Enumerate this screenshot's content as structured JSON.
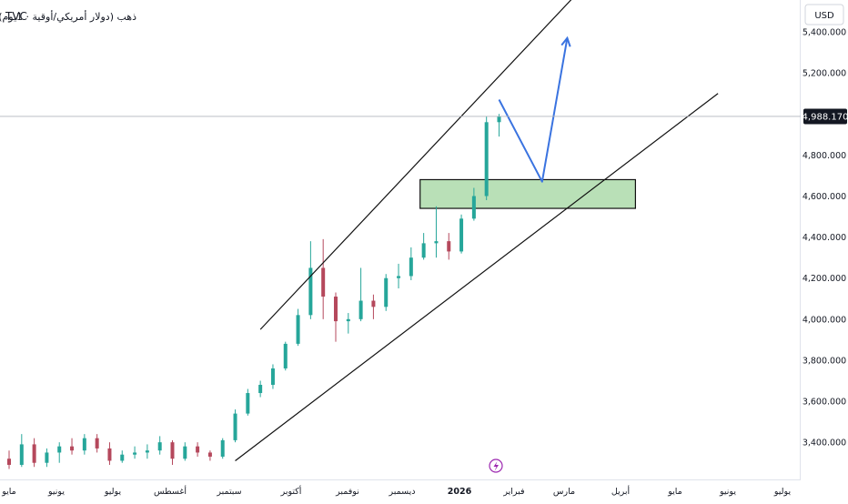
{
  "header": {
    "symbol_title": "(ذهب (دولار أمريكي/أوقية · 1يوم",
    "exchange": "TVC"
  },
  "price_axis": {
    "currency": "USD",
    "ticks": [
      "5,400.000",
      "5,200.000",
      "4,800.000",
      "4,600.000",
      "4,400.000",
      "4,200.000",
      "4,000.000",
      "3,800.000",
      "3,600.000",
      "3,400.000"
    ],
    "last_price_label": "4,988.170"
  },
  "time_axis": {
    "labels": [
      "مايو",
      "يونيو",
      "يوليو",
      "أغسطس",
      "سبتمبر",
      "أكتوبر",
      "نوفمبر",
      "ديسمبر",
      "2026",
      "فبراير",
      "مارس",
      "أبريل",
      "مايو",
      "يونيو",
      "يوليو"
    ]
  },
  "event_marker_icon": "lightning-icon",
  "colors": {
    "up_candle": "#26a69a",
    "down_candle": "#b5485c",
    "projection_arrow": "#3a73e0",
    "support_zone": "#b9e0b7",
    "channel_lines": "#111111"
  },
  "chart_data": {
    "type": "candlestick",
    "title": "",
    "ylabel": "USD",
    "ylim": [
      3250,
      5520
    ],
    "last_price": 4988.17,
    "x_range": [
      "2025-04-28",
      "2026-07-08"
    ],
    "series_ohlc": [
      {
        "date": "2025-04-28",
        "o": 3320,
        "h": 3360,
        "l": 3270,
        "c": 3290
      },
      {
        "date": "2025-05-05",
        "o": 3290,
        "h": 3440,
        "l": 3280,
        "c": 3390
      },
      {
        "date": "2025-05-12",
        "o": 3390,
        "h": 3420,
        "l": 3280,
        "c": 3300
      },
      {
        "date": "2025-05-19",
        "o": 3300,
        "h": 3370,
        "l": 3280,
        "c": 3350
      },
      {
        "date": "2025-05-26",
        "o": 3350,
        "h": 3400,
        "l": 3300,
        "c": 3380
      },
      {
        "date": "2025-06-02",
        "o": 3380,
        "h": 3420,
        "l": 3340,
        "c": 3360
      },
      {
        "date": "2025-06-09",
        "o": 3360,
        "h": 3440,
        "l": 3340,
        "c": 3420
      },
      {
        "date": "2025-06-16",
        "o": 3420,
        "h": 3440,
        "l": 3350,
        "c": 3370
      },
      {
        "date": "2025-06-23",
        "o": 3370,
        "h": 3400,
        "l": 3290,
        "c": 3310
      },
      {
        "date": "2025-06-30",
        "o": 3310,
        "h": 3360,
        "l": 3300,
        "c": 3340
      },
      {
        "date": "2025-07-07",
        "o": 3340,
        "h": 3380,
        "l": 3320,
        "c": 3350
      },
      {
        "date": "2025-07-14",
        "o": 3350,
        "h": 3390,
        "l": 3320,
        "c": 3360
      },
      {
        "date": "2025-07-21",
        "o": 3360,
        "h": 3430,
        "l": 3340,
        "c": 3400
      },
      {
        "date": "2025-07-28",
        "o": 3400,
        "h": 3410,
        "l": 3290,
        "c": 3320
      },
      {
        "date": "2025-08-04",
        "o": 3320,
        "h": 3400,
        "l": 3310,
        "c": 3380
      },
      {
        "date": "2025-08-11",
        "o": 3380,
        "h": 3400,
        "l": 3330,
        "c": 3350
      },
      {
        "date": "2025-08-18",
        "o": 3350,
        "h": 3360,
        "l": 3310,
        "c": 3330
      },
      {
        "date": "2025-08-25",
        "o": 3330,
        "h": 3420,
        "l": 3320,
        "c": 3410
      },
      {
        "date": "2025-09-01",
        "o": 3410,
        "h": 3560,
        "l": 3400,
        "c": 3540
      },
      {
        "date": "2025-09-08",
        "o": 3540,
        "h": 3660,
        "l": 3530,
        "c": 3640
      },
      {
        "date": "2025-09-15",
        "o": 3640,
        "h": 3700,
        "l": 3620,
        "c": 3680
      },
      {
        "date": "2025-09-22",
        "o": 3680,
        "h": 3780,
        "l": 3660,
        "c": 3760
      },
      {
        "date": "2025-09-29",
        "o": 3760,
        "h": 3890,
        "l": 3750,
        "c": 3880
      },
      {
        "date": "2025-10-06",
        "o": 3880,
        "h": 4050,
        "l": 3870,
        "c": 4020
      },
      {
        "date": "2025-10-13",
        "o": 4020,
        "h": 4380,
        "l": 4000,
        "c": 4250
      },
      {
        "date": "2025-10-20",
        "o": 4250,
        "h": 4390,
        "l": 4000,
        "c": 4110
      },
      {
        "date": "2025-10-27",
        "o": 4110,
        "h": 4130,
        "l": 3890,
        "c": 3990
      },
      {
        "date": "2025-11-03",
        "o": 3990,
        "h": 4030,
        "l": 3930,
        "c": 4000
      },
      {
        "date": "2025-11-10",
        "o": 4000,
        "h": 4250,
        "l": 3990,
        "c": 4090
      },
      {
        "date": "2025-11-17",
        "o": 4090,
        "h": 4120,
        "l": 4000,
        "c": 4060
      },
      {
        "date": "2025-11-24",
        "o": 4060,
        "h": 4220,
        "l": 4040,
        "c": 4200
      },
      {
        "date": "2025-12-01",
        "o": 4200,
        "h": 4270,
        "l": 4150,
        "c": 4210
      },
      {
        "date": "2025-12-08",
        "o": 4210,
        "h": 4350,
        "l": 4190,
        "c": 4300
      },
      {
        "date": "2025-12-15",
        "o": 4300,
        "h": 4420,
        "l": 4290,
        "c": 4370
      },
      {
        "date": "2025-12-22",
        "o": 4370,
        "h": 4550,
        "l": 4300,
        "c": 4380
      },
      {
        "date": "2025-12-29",
        "o": 4380,
        "h": 4420,
        "l": 4290,
        "c": 4330
      },
      {
        "date": "2026-01-05",
        "o": 4330,
        "h": 4510,
        "l": 4320,
        "c": 4490
      },
      {
        "date": "2026-01-12",
        "o": 4490,
        "h": 4640,
        "l": 4480,
        "c": 4600
      },
      {
        "date": "2026-01-19",
        "o": 4600,
        "h": 4990,
        "l": 4580,
        "c": 4960
      },
      {
        "date": "2026-01-26",
        "o": 4960,
        "h": 5000,
        "l": 4890,
        "c": 4988.17
      }
    ],
    "annotations": {
      "ascending_channel": {
        "upper": [
          [
            "2025-09-15",
            3950
          ],
          [
            "2026-04-11",
            5880
          ]
        ],
        "lower": [
          [
            "2025-09-01",
            3310
          ],
          [
            "2026-05-28",
            5100
          ]
        ]
      },
      "support_zone": {
        "x": [
          "2025-12-13",
          "2026-04-12"
        ],
        "y": [
          4540,
          4680
        ]
      },
      "projection_path": [
        [
          "2026-01-26",
          5070
        ],
        [
          "2026-02-19",
          4670
        ],
        [
          "2026-03-05",
          5370
        ]
      ]
    }
  }
}
